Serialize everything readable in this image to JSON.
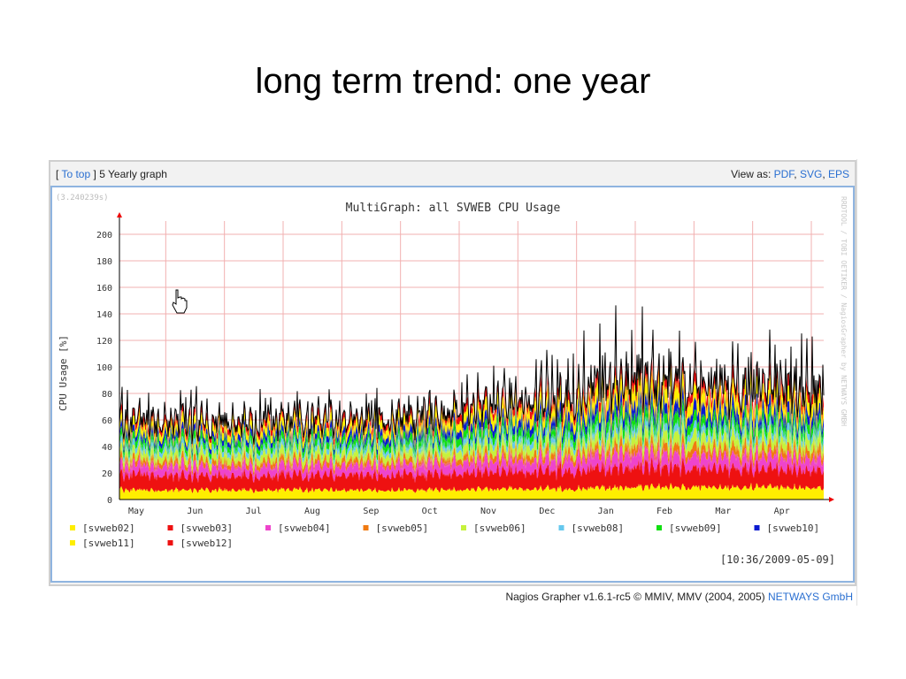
{
  "slide": {
    "title": "long term trend: one year"
  },
  "topbar": {
    "bracket_open": "[",
    "to_top": "To top",
    "bracket_close": "]",
    "graph_name": "5 Yearly graph",
    "view_as": "View as:",
    "formats": [
      "PDF",
      "SVG",
      "EPS"
    ]
  },
  "footer": {
    "text": "Nagios Grapher v1.6.1-rc5 © MMIV, MMV (2004, 2005)",
    "company": "NETWAYS GmbH"
  },
  "colors": {
    "grid": "#f2b0b0",
    "axis": "#000000",
    "svweb02": "#ffee00",
    "svweb03": "#ee1111",
    "svweb04": "#ee44cc",
    "svweb05": "#f07a10",
    "svweb06": "#c6f23c",
    "svweb08": "#66c8ee",
    "svweb09": "#11e011",
    "svweb10": "#0a1ad0",
    "svweb11": "#ffee00",
    "svweb12": "#ee1111",
    "total_line": "#000000"
  },
  "chart_data": {
    "type": "area",
    "title": "MultiGraph: all SVWEB CPU Usage",
    "subtitle": "(3.240239s)",
    "watermark": "RRDTOOL / TOBI OETIKER / NagiosGrapher by NETWAYS GMBH",
    "ylabel": "CPU Usage [%]",
    "xlabel": "",
    "ylim": [
      0,
      210
    ],
    "yticks": [
      0,
      20,
      40,
      60,
      80,
      100,
      120,
      140,
      160,
      180,
      200
    ],
    "categories": [
      "May",
      "Jun",
      "Jul",
      "Aug",
      "Sep",
      "Oct",
      "Nov",
      "Dec",
      "Jan",
      "Feb",
      "Mar",
      "Apr"
    ],
    "stacked": true,
    "grid": true,
    "legend_position": "bottom",
    "timestamp": "[10:36/2009-05-09]",
    "series": [
      {
        "name": "[svweb02]",
        "values": [
          7,
          7,
          7,
          7,
          7,
          7,
          8,
          8,
          9,
          9,
          9,
          9
        ]
      },
      {
        "name": "[svweb03]",
        "values": [
          12,
          11,
          11,
          11,
          12,
          12,
          13,
          14,
          15,
          14,
          14,
          14
        ]
      },
      {
        "name": "[svweb04]",
        "values": [
          7,
          7,
          7,
          7,
          7,
          8,
          8,
          9,
          10,
          9,
          9,
          9
        ]
      },
      {
        "name": "[svweb05]",
        "values": [
          4,
          4,
          4,
          4,
          4,
          4,
          5,
          5,
          6,
          6,
          6,
          6
        ]
      },
      {
        "name": "[svweb06]",
        "values": [
          6,
          6,
          6,
          6,
          6,
          6,
          7,
          7,
          8,
          8,
          8,
          8
        ]
      },
      {
        "name": "[svweb08]",
        "values": [
          4,
          4,
          4,
          4,
          4,
          4,
          5,
          5,
          5,
          5,
          5,
          5
        ]
      },
      {
        "name": "[svweb09]",
        "values": [
          5,
          5,
          5,
          5,
          5,
          6,
          6,
          7,
          8,
          7,
          7,
          7
        ]
      },
      {
        "name": "[svweb10]",
        "values": [
          4,
          4,
          4,
          4,
          5,
          5,
          6,
          7,
          8,
          7,
          7,
          7
        ]
      },
      {
        "name": "[svweb11]",
        "values": [
          6,
          6,
          6,
          6,
          6,
          7,
          8,
          9,
          11,
          10,
          10,
          10
        ]
      },
      {
        "name": "[svweb12]",
        "values": [
          5,
          5,
          5,
          5,
          5,
          6,
          6,
          7,
          9,
          8,
          8,
          8
        ]
      }
    ],
    "totals_peak": [
      85,
      85,
      88,
      85,
      86,
      88,
      105,
      118,
      162,
      130,
      148,
      125
    ]
  }
}
